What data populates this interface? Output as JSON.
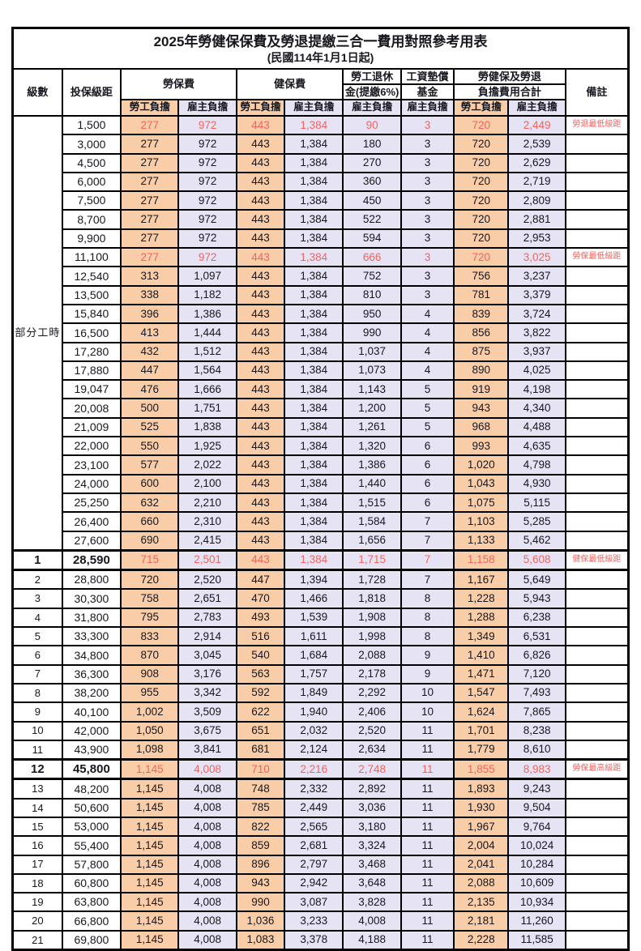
{
  "title": "2025年勞健保保費及勞退提繳三合一費用對照參考用表",
  "subtitle": "(民國114年1月1日起)",
  "header": {
    "level": "級數",
    "salary": "投保級距",
    "labor_fee": "勞保費",
    "health_fee": "健保費",
    "pension_line1": "勞工退休",
    "pension_line2": "金(提繳6%)",
    "wage_fund_line1": "工資墊償",
    "wage_fund_line2": "基金",
    "total_line1": "勞健保及勞退",
    "total_line2": "負擔費用合計",
    "note": "備註",
    "employee_share": "勞工負擔",
    "employer_share": "雇主負擔"
  },
  "part_time_label": "部分工時",
  "colors": {
    "employee_bg": "#f9cda8",
    "employer_bg": "#e6e4f4",
    "highlight_red": "#f2635f",
    "border_black": "#000000"
  },
  "rows": [
    {
      "level": "",
      "salary": "1,500",
      "values": [
        "277",
        "972",
        "443",
        "1,384",
        "90",
        "3",
        "720",
        "2,449"
      ],
      "note": "勞退最低級距",
      "red": true,
      "bold": false
    },
    {
      "level": "",
      "salary": "3,000",
      "values": [
        "277",
        "972",
        "443",
        "1,384",
        "180",
        "3",
        "720",
        "2,539"
      ],
      "note": "",
      "red": false,
      "bold": false
    },
    {
      "level": "",
      "salary": "4,500",
      "values": [
        "277",
        "972",
        "443",
        "1,384",
        "270",
        "3",
        "720",
        "2,629"
      ],
      "note": "",
      "red": false,
      "bold": false
    },
    {
      "level": "",
      "salary": "6,000",
      "values": [
        "277",
        "972",
        "443",
        "1,384",
        "360",
        "3",
        "720",
        "2,719"
      ],
      "note": "",
      "red": false,
      "bold": false
    },
    {
      "level": "",
      "salary": "7,500",
      "values": [
        "277",
        "972",
        "443",
        "1,384",
        "450",
        "3",
        "720",
        "2,809"
      ],
      "note": "",
      "red": false,
      "bold": false
    },
    {
      "level": "",
      "salary": "8,700",
      "values": [
        "277",
        "972",
        "443",
        "1,384",
        "522",
        "3",
        "720",
        "2,881"
      ],
      "note": "",
      "red": false,
      "bold": false
    },
    {
      "level": "",
      "salary": "9,900",
      "values": [
        "277",
        "972",
        "443",
        "1,384",
        "594",
        "3",
        "720",
        "2,953"
      ],
      "note": "",
      "red": false,
      "bold": false
    },
    {
      "level": "",
      "salary": "11,100",
      "values": [
        "277",
        "972",
        "443",
        "1,384",
        "666",
        "3",
        "720",
        "3,025"
      ],
      "note": "勞保最低級距",
      "red": true,
      "bold": false
    },
    {
      "level": "",
      "salary": "12,540",
      "values": [
        "313",
        "1,097",
        "443",
        "1,384",
        "752",
        "3",
        "756",
        "3,237"
      ],
      "note": "",
      "red": false,
      "bold": false
    },
    {
      "level": "",
      "salary": "13,500",
      "values": [
        "338",
        "1,182",
        "443",
        "1,384",
        "810",
        "3",
        "781",
        "3,379"
      ],
      "note": "",
      "red": false,
      "bold": false
    },
    {
      "level": "",
      "salary": "15,840",
      "values": [
        "396",
        "1,386",
        "443",
        "1,384",
        "950",
        "4",
        "839",
        "3,724"
      ],
      "note": "",
      "red": false,
      "bold": false
    },
    {
      "level": "",
      "salary": "16,500",
      "values": [
        "413",
        "1,444",
        "443",
        "1,384",
        "990",
        "4",
        "856",
        "3,822"
      ],
      "note": "",
      "red": false,
      "bold": false
    },
    {
      "level": "",
      "salary": "17,280",
      "values": [
        "432",
        "1,512",
        "443",
        "1,384",
        "1,037",
        "4",
        "875",
        "3,937"
      ],
      "note": "",
      "red": false,
      "bold": false
    },
    {
      "level": "",
      "salary": "17,880",
      "values": [
        "447",
        "1,564",
        "443",
        "1,384",
        "1,073",
        "4",
        "890",
        "4,025"
      ],
      "note": "",
      "red": false,
      "bold": false
    },
    {
      "level": "",
      "salary": "19,047",
      "values": [
        "476",
        "1,666",
        "443",
        "1,384",
        "1,143",
        "5",
        "919",
        "4,198"
      ],
      "note": "",
      "red": false,
      "bold": false
    },
    {
      "level": "",
      "salary": "20,008",
      "values": [
        "500",
        "1,751",
        "443",
        "1,384",
        "1,200",
        "5",
        "943",
        "4,340"
      ],
      "note": "",
      "red": false,
      "bold": false
    },
    {
      "level": "",
      "salary": "21,009",
      "values": [
        "525",
        "1,838",
        "443",
        "1,384",
        "1,261",
        "5",
        "968",
        "4,488"
      ],
      "note": "",
      "red": false,
      "bold": false
    },
    {
      "level": "",
      "salary": "22,000",
      "values": [
        "550",
        "1,925",
        "443",
        "1,384",
        "1,320",
        "6",
        "993",
        "4,635"
      ],
      "note": "",
      "red": false,
      "bold": false
    },
    {
      "level": "",
      "salary": "23,100",
      "values": [
        "577",
        "2,022",
        "443",
        "1,384",
        "1,386",
        "6",
        "1,020",
        "4,798"
      ],
      "note": "",
      "red": false,
      "bold": false
    },
    {
      "level": "",
      "salary": "24,000",
      "values": [
        "600",
        "2,100",
        "443",
        "1,384",
        "1,440",
        "6",
        "1,043",
        "4,930"
      ],
      "note": "",
      "red": false,
      "bold": false
    },
    {
      "level": "",
      "salary": "25,250",
      "values": [
        "632",
        "2,210",
        "443",
        "1,384",
        "1,515",
        "6",
        "1,075",
        "5,115"
      ],
      "note": "",
      "red": false,
      "bold": false
    },
    {
      "level": "",
      "salary": "26,400",
      "values": [
        "660",
        "2,310",
        "443",
        "1,384",
        "1,584",
        "7",
        "1,103",
        "5,285"
      ],
      "note": "",
      "red": false,
      "bold": false
    },
    {
      "level": "",
      "salary": "27,600",
      "values": [
        "690",
        "2,415",
        "443",
        "1,384",
        "1,656",
        "7",
        "1,133",
        "5,462"
      ],
      "note": "",
      "red": false,
      "bold": false
    },
    {
      "level": "1",
      "salary": "28,590",
      "values": [
        "715",
        "2,501",
        "443",
        "1,384",
        "1,715",
        "7",
        "1,158",
        "5,608"
      ],
      "note": "健保最低級距",
      "red": true,
      "bold": true
    },
    {
      "level": "2",
      "salary": "28,800",
      "values": [
        "720",
        "2,520",
        "447",
        "1,394",
        "1,728",
        "7",
        "1,167",
        "5,649"
      ],
      "note": "",
      "red": false,
      "bold": false
    },
    {
      "level": "3",
      "salary": "30,300",
      "values": [
        "758",
        "2,651",
        "470",
        "1,466",
        "1,818",
        "8",
        "1,228",
        "5,943"
      ],
      "note": "",
      "red": false,
      "bold": false
    },
    {
      "level": "4",
      "salary": "31,800",
      "values": [
        "795",
        "2,783",
        "493",
        "1,539",
        "1,908",
        "8",
        "1,288",
        "6,238"
      ],
      "note": "",
      "red": false,
      "bold": false
    },
    {
      "level": "5",
      "salary": "33,300",
      "values": [
        "833",
        "2,914",
        "516",
        "1,611",
        "1,998",
        "8",
        "1,349",
        "6,531"
      ],
      "note": "",
      "red": false,
      "bold": false
    },
    {
      "level": "6",
      "salary": "34,800",
      "values": [
        "870",
        "3,045",
        "540",
        "1,684",
        "2,088",
        "9",
        "1,410",
        "6,826"
      ],
      "note": "",
      "red": false,
      "bold": false
    },
    {
      "level": "7",
      "salary": "36,300",
      "values": [
        "908",
        "3,176",
        "563",
        "1,757",
        "2,178",
        "9",
        "1,471",
        "7,120"
      ],
      "note": "",
      "red": false,
      "bold": false
    },
    {
      "level": "8",
      "salary": "38,200",
      "values": [
        "955",
        "3,342",
        "592",
        "1,849",
        "2,292",
        "10",
        "1,547",
        "7,493"
      ],
      "note": "",
      "red": false,
      "bold": false
    },
    {
      "level": "9",
      "salary": "40,100",
      "values": [
        "1,002",
        "3,509",
        "622",
        "1,940",
        "2,406",
        "10",
        "1,624",
        "7,865"
      ],
      "note": "",
      "red": false,
      "bold": false
    },
    {
      "level": "10",
      "salary": "42,000",
      "values": [
        "1,050",
        "3,675",
        "651",
        "2,032",
        "2,520",
        "11",
        "1,701",
        "8,238"
      ],
      "note": "",
      "red": false,
      "bold": false
    },
    {
      "level": "11",
      "salary": "43,900",
      "values": [
        "1,098",
        "3,841",
        "681",
        "2,124",
        "2,634",
        "11",
        "1,779",
        "8,610"
      ],
      "note": "",
      "red": false,
      "bold": false
    },
    {
      "level": "12",
      "salary": "45,800",
      "values": [
        "1,145",
        "4,008",
        "710",
        "2,216",
        "2,748",
        "11",
        "1,855",
        "8,983"
      ],
      "note": "勞保最高級距",
      "red": true,
      "bold": true
    },
    {
      "level": "13",
      "salary": "48,200",
      "values": [
        "1,145",
        "4,008",
        "748",
        "2,332",
        "2,892",
        "11",
        "1,893",
        "9,243"
      ],
      "note": "",
      "red": false,
      "bold": false
    },
    {
      "level": "14",
      "salary": "50,600",
      "values": [
        "1,145",
        "4,008",
        "785",
        "2,449",
        "3,036",
        "11",
        "1,930",
        "9,504"
      ],
      "note": "",
      "red": false,
      "bold": false
    },
    {
      "level": "15",
      "salary": "53,000",
      "values": [
        "1,145",
        "4,008",
        "822",
        "2,565",
        "3,180",
        "11",
        "1,967",
        "9,764"
      ],
      "note": "",
      "red": false,
      "bold": false
    },
    {
      "level": "16",
      "salary": "55,400",
      "values": [
        "1,145",
        "4,008",
        "859",
        "2,681",
        "3,324",
        "11",
        "2,004",
        "10,024"
      ],
      "note": "",
      "red": false,
      "bold": false
    },
    {
      "level": "17",
      "salary": "57,800",
      "values": [
        "1,145",
        "4,008",
        "896",
        "2,797",
        "3,468",
        "11",
        "2,041",
        "10,284"
      ],
      "note": "",
      "red": false,
      "bold": false
    },
    {
      "level": "18",
      "salary": "60,800",
      "values": [
        "1,145",
        "4,008",
        "943",
        "2,942",
        "3,648",
        "11",
        "2,088",
        "10,609"
      ],
      "note": "",
      "red": false,
      "bold": false
    },
    {
      "level": "19",
      "salary": "63,800",
      "values": [
        "1,145",
        "4,008",
        "990",
        "3,087",
        "3,828",
        "11",
        "2,135",
        "10,934"
      ],
      "note": "",
      "red": false,
      "bold": false
    },
    {
      "level": "20",
      "salary": "66,800",
      "values": [
        "1,145",
        "4,008",
        "1,036",
        "3,233",
        "4,008",
        "11",
        "2,181",
        "11,260"
      ],
      "note": "",
      "red": false,
      "bold": false
    },
    {
      "level": "21",
      "salary": "69,800",
      "values": [
        "1,145",
        "4,008",
        "1,083",
        "3,378",
        "4,188",
        "11",
        "2,228",
        "11,585"
      ],
      "note": "",
      "red": false,
      "bold": false
    }
  ]
}
